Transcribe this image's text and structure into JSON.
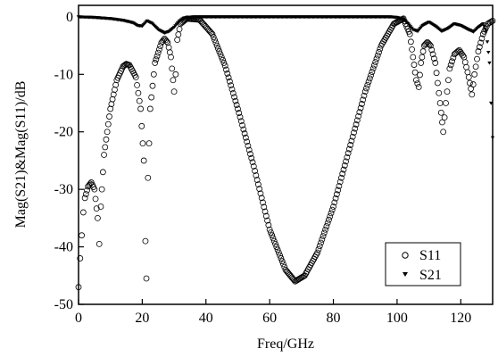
{
  "chart_data": {
    "type": "scatter",
    "title": "",
    "xlabel": "Freq/GHz",
    "ylabel": "Mag(S21)&Mag(S11)/dB",
    "xlim": [
      0,
      130
    ],
    "ylim": [
      -50,
      2
    ],
    "x_ticks": [
      "0",
      "20",
      "40",
      "60",
      "80",
      "100",
      "120"
    ],
    "y_ticks": [
      "0",
      "-10",
      "-20",
      "-30",
      "-40",
      "-50"
    ],
    "grid": false,
    "legend_position": "bottom-right",
    "series": [
      {
        "name": "S11",
        "marker": "circle",
        "color": "#000000",
        "points": [
          [
            0,
            -47
          ],
          [
            0.5,
            -42
          ],
          [
            1,
            -38
          ],
          [
            1.5,
            -34
          ],
          [
            2,
            -31.5
          ],
          [
            3,
            -29.5
          ],
          [
            4,
            -28.8
          ],
          [
            5,
            -30
          ],
          [
            6,
            -35
          ],
          [
            6.5,
            -39.5
          ],
          [
            7,
            -33
          ],
          [
            8,
            -24
          ],
          [
            10,
            -16
          ],
          [
            12,
            -11
          ],
          [
            14,
            -8.6
          ],
          [
            15,
            -8.2
          ],
          [
            16,
            -8.4
          ],
          [
            18,
            -10.5
          ],
          [
            19.5,
            -16
          ],
          [
            20.5,
            -25
          ],
          [
            21,
            -39
          ],
          [
            21.3,
            -45.5
          ],
          [
            21.8,
            -28
          ],
          [
            22.5,
            -16
          ],
          [
            24,
            -8
          ],
          [
            26,
            -4.5
          ],
          [
            27,
            -3.8
          ],
          [
            28,
            -4.5
          ],
          [
            29,
            -7
          ],
          [
            30,
            -13
          ],
          [
            30.5,
            -10
          ],
          [
            31,
            -4
          ],
          [
            32,
            -1.2
          ],
          [
            34,
            -0.3
          ],
          [
            38,
            -0.5
          ],
          [
            42,
            -3
          ],
          [
            46,
            -8.5
          ],
          [
            50,
            -16
          ],
          [
            55,
            -26
          ],
          [
            60,
            -37
          ],
          [
            65,
            -44
          ],
          [
            68,
            -46
          ],
          [
            71,
            -45
          ],
          [
            75,
            -41
          ],
          [
            80,
            -33
          ],
          [
            85,
            -23
          ],
          [
            90,
            -13
          ],
          [
            95,
            -5
          ],
          [
            99,
            -1.2
          ],
          [
            102,
            -0.3
          ],
          [
            104,
            -3
          ],
          [
            106,
            -11
          ],
          [
            106.8,
            -12.2
          ],
          [
            107.5,
            -8
          ],
          [
            108.5,
            -5
          ],
          [
            109.5,
            -4.4
          ],
          [
            110.5,
            -5
          ],
          [
            112,
            -8
          ],
          [
            113.5,
            -15
          ],
          [
            114.5,
            -20
          ],
          [
            115.3,
            -15
          ],
          [
            116.5,
            -9
          ],
          [
            118,
            -6.5
          ],
          [
            119.5,
            -5.8
          ],
          [
            121,
            -7
          ],
          [
            122.5,
            -10.5
          ],
          [
            123.5,
            -13.5
          ],
          [
            124.3,
            -10
          ],
          [
            125.5,
            -6
          ],
          [
            127,
            -3
          ],
          [
            128.5,
            -1.2
          ],
          [
            130,
            -0.7
          ]
        ]
      },
      {
        "name": "S21",
        "marker": "triangle-down",
        "color": "#000000",
        "points": [
          [
            0,
            0
          ],
          [
            5,
            -0.1
          ],
          [
            10,
            -0.3
          ],
          [
            14,
            -0.6
          ],
          [
            17,
            -1
          ],
          [
            18.5,
            -1.5
          ],
          [
            20,
            -1.6
          ],
          [
            21.5,
            -0.7
          ],
          [
            23,
            -1.1
          ],
          [
            25,
            -2.2
          ],
          [
            27,
            -2.8
          ],
          [
            28.5,
            -2.5
          ],
          [
            30,
            -1.8
          ],
          [
            31.5,
            -0.8
          ],
          [
            33,
            -0.2
          ],
          [
            36,
            0
          ],
          [
            50,
            0
          ],
          [
            70,
            0
          ],
          [
            90,
            0
          ],
          [
            98,
            0
          ],
          [
            100,
            -0.1
          ],
          [
            102,
            -0.4
          ],
          [
            103.5,
            -1.2
          ],
          [
            105,
            -2.2
          ],
          [
            106.5,
            -2.5
          ],
          [
            108,
            -1.5
          ],
          [
            110,
            -0.9
          ],
          [
            112,
            -1.6
          ],
          [
            114,
            -2.5
          ],
          [
            116,
            -2
          ],
          [
            118,
            -1.2
          ],
          [
            120,
            -1.5
          ],
          [
            122,
            -2.1
          ],
          [
            124,
            -2.6
          ],
          [
            125.5,
            -1.8
          ],
          [
            127,
            -1.2
          ],
          [
            128,
            -2.5
          ],
          [
            129,
            -8
          ],
          [
            129.5,
            -15
          ],
          [
            130,
            -21
          ]
        ]
      }
    ]
  }
}
